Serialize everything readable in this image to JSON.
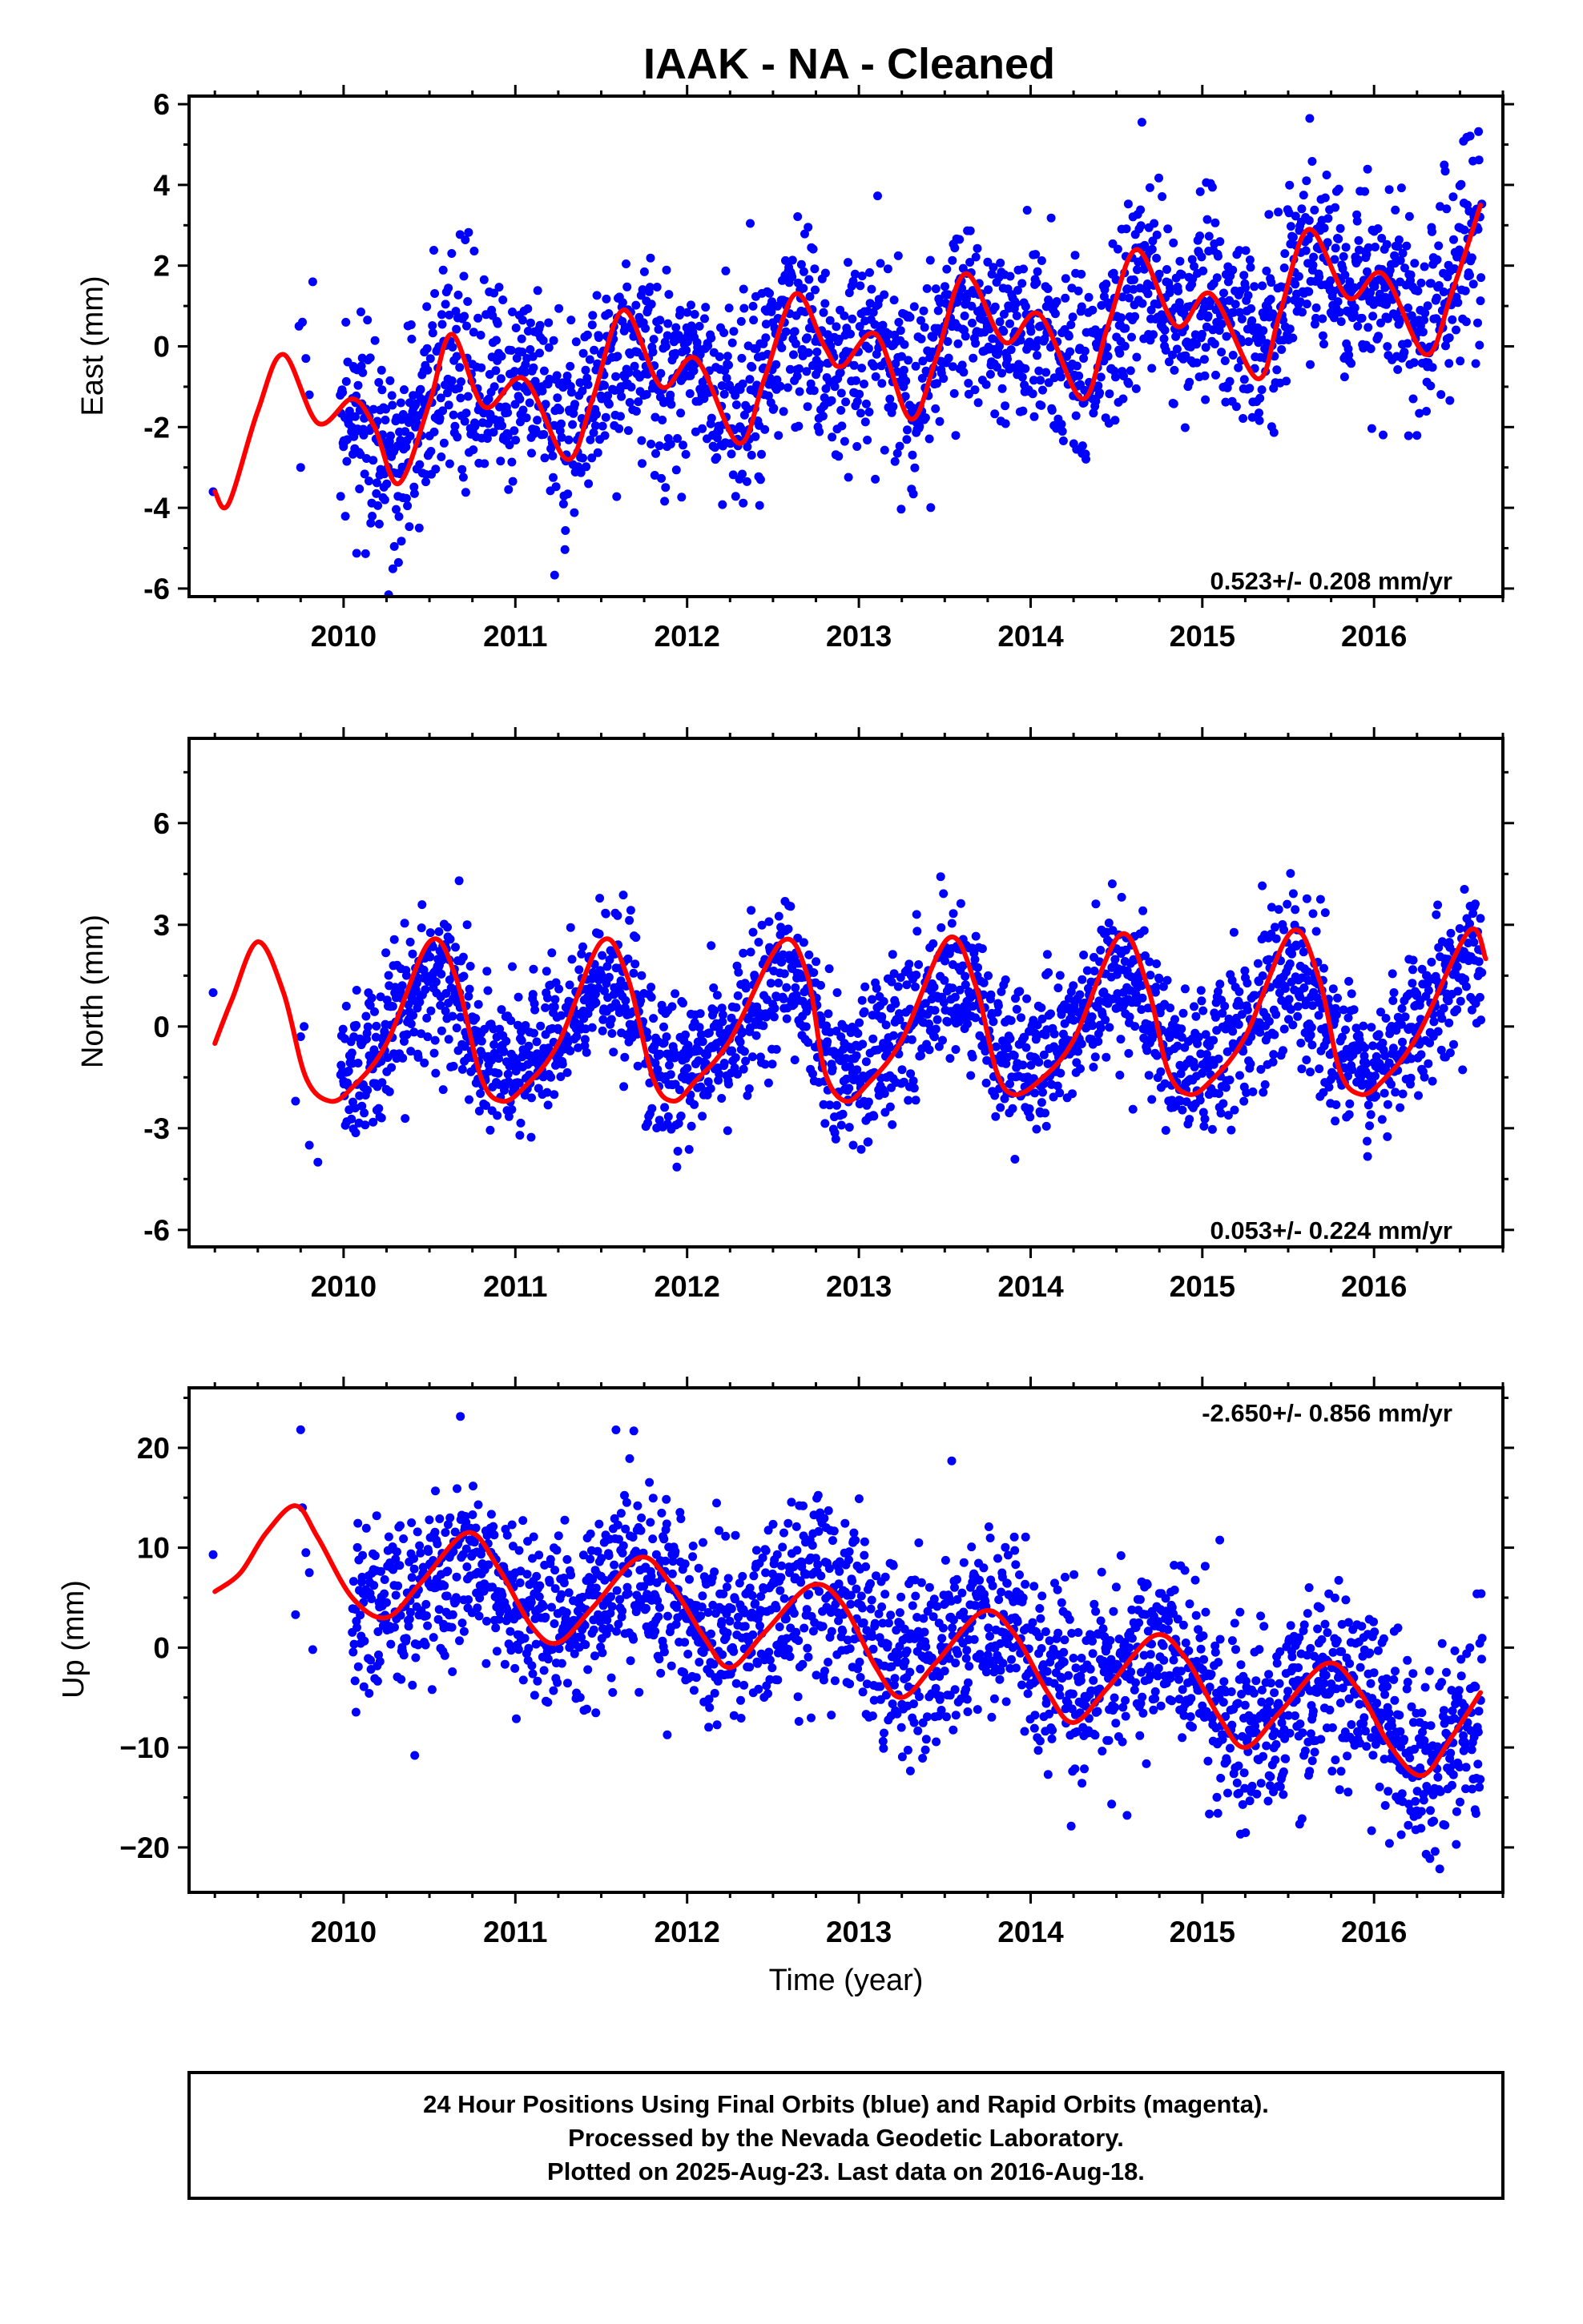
{
  "title": "IAAK  - NA - Cleaned",
  "xlabel": "Time (year)",
  "footer": {
    "line1": "24 Hour Positions Using Final Orbits (blue) and Rapid Orbits (magenta).",
    "line2": "Processed by the Nevada Geodetic Laboratory.",
    "line3": "Plotted on 2025-Aug-23. Last data on 2016-Aug-18."
  },
  "colors": {
    "final_orbits": "#0000ff",
    "model_fit": "#ff0000",
    "axes": "#000000"
  },
  "chart_data": [
    {
      "type": "scatter",
      "ylabel": "East (mm)",
      "rate_label": "0.523+/- 0.208 mm/yr",
      "rate_label_position": "bottom-right",
      "xlim": [
        2009.1,
        2016.75
      ],
      "ylim": [
        -6.2,
        6.2
      ],
      "xticks": [
        2010,
        2011,
        2012,
        2013,
        2014,
        2015,
        2016
      ],
      "xtick_labels": [
        "2010",
        "2011",
        "2012",
        "2013",
        "2014",
        "2015",
        "2016"
      ],
      "yticks": [
        -6,
        -4,
        -2,
        0,
        2,
        4,
        6
      ],
      "ytick_labels": [
        "-6",
        "-4",
        "-2",
        "0",
        "2",
        "4",
        "6"
      ],
      "grid": false,
      "data_start": 2009.98,
      "data_end": 2016.63,
      "series": [
        {
          "kind": "points",
          "approx_trend": [
            [
              2010.0,
              -2.3
            ],
            [
              2011.0,
              -0.6
            ],
            [
              2012.0,
              -0.8
            ],
            [
              2013.0,
              0.0
            ],
            [
              2014.0,
              -0.2
            ],
            [
              2015.0,
              1.0
            ],
            [
              2016.0,
              1.3
            ],
            [
              2016.6,
              2.4
            ]
          ],
          "scatter_sd": 1.2,
          "sparse_points": [
            [
              2009.24,
              -3.6
            ],
            [
              2009.74,
              0.5
            ],
            [
              2009.76,
              0.6
            ],
            [
              2009.75,
              -3.0
            ],
            [
              2009.82,
              1.6
            ],
            [
              2009.78,
              -0.3
            ],
            [
              2009.8,
              -1.2
            ]
          ]
        },
        {
          "kind": "model_fit",
          "points": [
            [
              2009.25,
              -3.6
            ],
            [
              2009.33,
              -3.9
            ],
            [
              2009.5,
              -1.6
            ],
            [
              2009.65,
              -0.2
            ],
            [
              2009.85,
              -1.9
            ],
            [
              2010.05,
              -1.3
            ],
            [
              2010.18,
              -2.0
            ],
            [
              2010.32,
              -3.4
            ],
            [
              2010.5,
              -1.4
            ],
            [
              2010.63,
              0.3
            ],
            [
              2010.82,
              -1.5
            ],
            [
              2011.05,
              -0.8
            ],
            [
              2011.3,
              -2.8
            ],
            [
              2011.45,
              -1.3
            ],
            [
              2011.63,
              0.9
            ],
            [
              2011.85,
              -1.0
            ],
            [
              2012.05,
              -0.3
            ],
            [
              2012.3,
              -2.4
            ],
            [
              2012.45,
              -0.8
            ],
            [
              2012.63,
              1.3
            ],
            [
              2012.8,
              0.0
            ],
            [
              2012.9,
              -0.5
            ],
            [
              2013.1,
              0.3
            ],
            [
              2013.3,
              -1.8
            ],
            [
              2013.45,
              -0.3
            ],
            [
              2013.62,
              1.8
            ],
            [
              2013.85,
              0.1
            ],
            [
              2014.05,
              0.8
            ],
            [
              2014.3,
              -1.3
            ],
            [
              2014.45,
              0.5
            ],
            [
              2014.62,
              2.4
            ],
            [
              2014.85,
              0.5
            ],
            [
              2015.05,
              1.3
            ],
            [
              2015.32,
              -0.8
            ],
            [
              2015.45,
              0.8
            ],
            [
              2015.62,
              2.9
            ],
            [
              2015.85,
              1.2
            ],
            [
              2016.05,
              1.8
            ],
            [
              2016.3,
              -0.2
            ],
            [
              2016.45,
              1.3
            ],
            [
              2016.62,
              3.5
            ]
          ]
        }
      ]
    },
    {
      "type": "scatter",
      "ylabel": "North (mm)",
      "rate_label": "0.053+/- 0.224 mm/yr",
      "rate_label_position": "bottom-right",
      "xlim": [
        2009.1,
        2016.75
      ],
      "ylim": [
        -6.5,
        8.5
      ],
      "xticks": [
        2010,
        2011,
        2012,
        2013,
        2014,
        2015,
        2016
      ],
      "xtick_labels": [
        "2010",
        "2011",
        "2012",
        "2013",
        "2014",
        "2015",
        "2016"
      ],
      "yticks": [
        -6,
        -3,
        0,
        3,
        6
      ],
      "ytick_labels": [
        "-6",
        "-3",
        "0",
        "3",
        "6"
      ],
      "grid": false,
      "data_start": 2009.98,
      "data_end": 2016.63,
      "series": [
        {
          "kind": "points",
          "approx_trend": [
            [
              2010.0,
              0.0
            ],
            [
              2016.6,
              0.3
            ]
          ],
          "scatter_sd": 1.1,
          "sparse_points": [
            [
              2009.24,
              1.0
            ],
            [
              2009.75,
              -0.3
            ],
            [
              2009.77,
              0.0
            ],
            [
              2009.8,
              -3.5
            ],
            [
              2009.85,
              -4.0
            ],
            [
              2009.72,
              -2.2
            ]
          ]
        },
        {
          "kind": "model_fit",
          "points": [
            [
              2009.25,
              -0.5
            ],
            [
              2009.35,
              0.8
            ],
            [
              2009.5,
              2.5
            ],
            [
              2009.65,
              1.0
            ],
            [
              2009.78,
              -1.5
            ],
            [
              2009.92,
              -2.2
            ],
            [
              2010.05,
              -1.8
            ],
            [
              2010.25,
              -0.5
            ],
            [
              2010.5,
              2.5
            ],
            [
              2010.65,
              1.5
            ],
            [
              2010.8,
              -1.5
            ],
            [
              2010.92,
              -2.2
            ],
            [
              2011.05,
              -1.8
            ],
            [
              2011.25,
              -0.5
            ],
            [
              2011.5,
              2.5
            ],
            [
              2011.65,
              1.5
            ],
            [
              2011.8,
              -1.5
            ],
            [
              2011.92,
              -2.2
            ],
            [
              2012.05,
              -1.6
            ],
            [
              2012.25,
              -0.4
            ],
            [
              2012.55,
              2.5
            ],
            [
              2012.7,
              1.5
            ],
            [
              2012.8,
              -1.3
            ],
            [
              2012.92,
              -2.2
            ],
            [
              2013.05,
              -1.7
            ],
            [
              2013.25,
              -0.4
            ],
            [
              2013.52,
              2.6
            ],
            [
              2013.68,
              1.2
            ],
            [
              2013.8,
              -1.3
            ],
            [
              2013.9,
              -2.0
            ],
            [
              2014.05,
              -1.6
            ],
            [
              2014.25,
              -0.4
            ],
            [
              2014.52,
              2.7
            ],
            [
              2014.68,
              1.2
            ],
            [
              2014.8,
              -1.3
            ],
            [
              2014.92,
              -2.0
            ],
            [
              2015.05,
              -1.6
            ],
            [
              2015.25,
              -0.3
            ],
            [
              2015.52,
              2.8
            ],
            [
              2015.68,
              1.4
            ],
            [
              2015.8,
              -1.3
            ],
            [
              2015.92,
              -2.0
            ],
            [
              2016.05,
              -1.6
            ],
            [
              2016.25,
              -0.3
            ],
            [
              2016.55,
              2.8
            ],
            [
              2016.65,
              2.0
            ]
          ]
        }
      ]
    },
    {
      "type": "scatter",
      "ylabel": "Up (mm)",
      "rate_label": "-2.650+/- 0.856 mm/yr",
      "rate_label_position": "top-right",
      "xlim": [
        2009.1,
        2016.75
      ],
      "ylim": [
        -24.5,
        26
      ],
      "xticks": [
        2010,
        2011,
        2012,
        2013,
        2014,
        2015,
        2016
      ],
      "xtick_labels": [
        "2010",
        "2011",
        "2012",
        "2013",
        "2014",
        "2015",
        "2016"
      ],
      "yticks": [
        -20,
        -10,
        0,
        10,
        20
      ],
      "ytick_labels": [
        "−20",
        "−10",
        "0",
        "10",
        "20"
      ],
      "grid": false,
      "data_start": 2010.05,
      "data_end": 2016.63,
      "series": [
        {
          "kind": "points",
          "approx_trend": [
            [
              2010.1,
              2.0
            ],
            [
              2011.0,
              4.0
            ],
            [
              2011.7,
              5.0
            ],
            [
              2012.3,
              4.0
            ],
            [
              2012.7,
              9.0
            ],
            [
              2013.0,
              4.0
            ],
            [
              2014.0,
              0.0
            ],
            [
              2015.0,
              -3.0
            ],
            [
              2015.3,
              -9.0
            ],
            [
              2016.0,
              -5.0
            ],
            [
              2016.3,
              -12.0
            ],
            [
              2016.6,
              -8.0
            ]
          ],
          "scatter_sd": 4.6,
          "sparse_points": [
            [
              2009.24,
              9.3
            ],
            [
              2009.75,
              21.8
            ],
            [
              2009.76,
              14.0
            ],
            [
              2009.72,
              3.3
            ],
            [
              2009.8,
              7.5
            ],
            [
              2009.82,
              -0.2
            ],
            [
              2009.78,
              9.5
            ]
          ]
        },
        {
          "kind": "model_fit",
          "points": [
            [
              2009.25,
              5.6
            ],
            [
              2009.4,
              7.5
            ],
            [
              2009.55,
              11.5
            ],
            [
              2009.72,
              14.2
            ],
            [
              2009.85,
              11.0
            ],
            [
              2010.05,
              5.0
            ],
            [
              2010.25,
              3.0
            ],
            [
              2010.45,
              6.5
            ],
            [
              2010.72,
              11.5
            ],
            [
              2010.9,
              8.0
            ],
            [
              2011.1,
              2.0
            ],
            [
              2011.25,
              0.5
            ],
            [
              2011.45,
              4.0
            ],
            [
              2011.72,
              9.0
            ],
            [
              2011.9,
              6.5
            ],
            [
              2012.1,
              1.0
            ],
            [
              2012.25,
              -2.0
            ],
            [
              2012.45,
              1.5
            ],
            [
              2012.72,
              6.2
            ],
            [
              2012.9,
              4.5
            ],
            [
              2013.1,
              -2.0
            ],
            [
              2013.25,
              -5.0
            ],
            [
              2013.45,
              -1.5
            ],
            [
              2013.72,
              3.6
            ],
            [
              2013.9,
              1.5
            ],
            [
              2014.1,
              -4.5
            ],
            [
              2014.25,
              -7.5
            ],
            [
              2014.45,
              -4.0
            ],
            [
              2014.72,
              1.2
            ],
            [
              2014.9,
              -1.0
            ],
            [
              2015.1,
              -7.0
            ],
            [
              2015.25,
              -10.0
            ],
            [
              2015.45,
              -6.5
            ],
            [
              2015.72,
              -1.6
            ],
            [
              2015.9,
              -4.0
            ],
            [
              2016.1,
              -10.0
            ],
            [
              2016.28,
              -12.8
            ],
            [
              2016.45,
              -9.0
            ],
            [
              2016.62,
              -4.5
            ]
          ]
        }
      ]
    }
  ]
}
